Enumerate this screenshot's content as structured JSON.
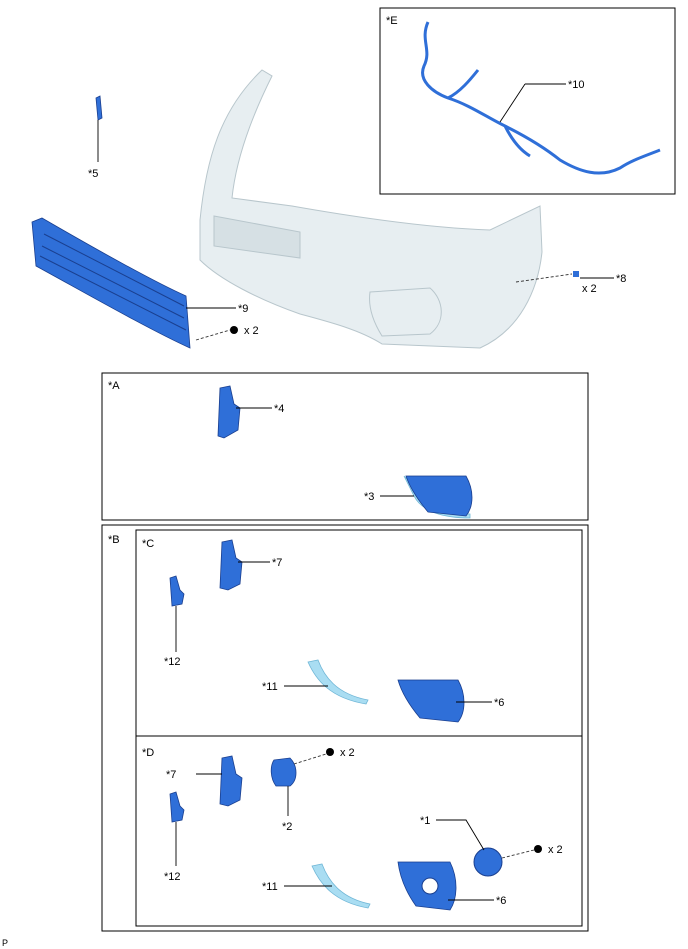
{
  "labels": {
    "p1": "*1",
    "p2": "*2",
    "p3": "*3",
    "p4": "*4",
    "p5": "*5",
    "p6": "*6",
    "p7": "*7",
    "p8": "*8",
    "p9": "*9",
    "p10": "*10",
    "p11": "*11",
    "p12": "*12"
  },
  "boxes": {
    "a": "*A",
    "b": "*B",
    "c": "*C",
    "d": "*D",
    "e": "*E"
  },
  "qty": "x 2",
  "footer": "P",
  "colors": {
    "part_blue": "#2f6fd8",
    "part_light_blue": "#a9ddf2",
    "bumper": "#e7eef1"
  }
}
